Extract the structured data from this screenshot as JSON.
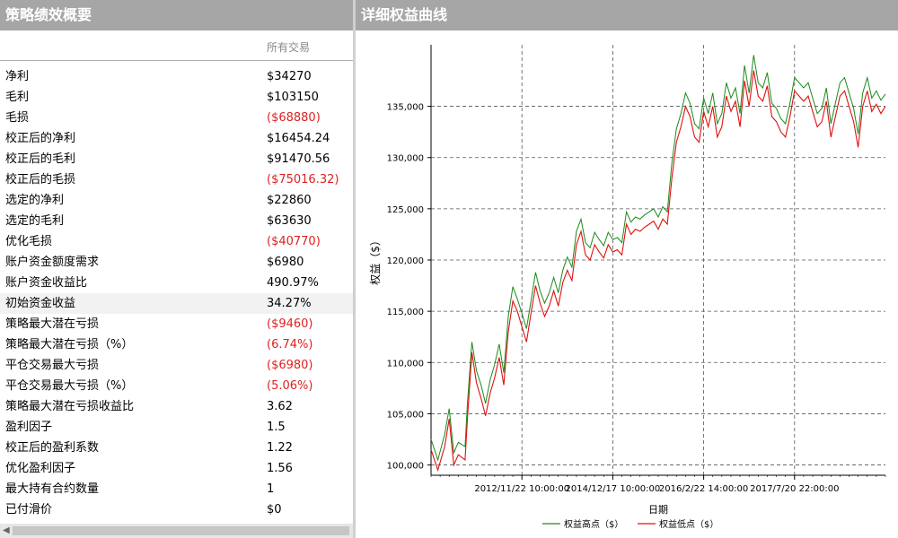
{
  "left_panel": {
    "title": "策略绩效概要",
    "column_header": "所有交易",
    "rows": [
      {
        "label": "净利",
        "value": "$34270",
        "negative": false
      },
      {
        "label": "毛利",
        "value": "$103150",
        "negative": false
      },
      {
        "label": "毛损",
        "value": "($68880)",
        "negative": true
      },
      {
        "label": "校正后的净利",
        "value": "$16454.24",
        "negative": false
      },
      {
        "label": "校正后的毛利",
        "value": "$91470.56",
        "negative": false
      },
      {
        "label": "校正后的毛损",
        "value": "($75016.32)",
        "negative": true
      },
      {
        "label": "选定的净利",
        "value": "$22860",
        "negative": false
      },
      {
        "label": "选定的毛利",
        "value": "$63630",
        "negative": false
      },
      {
        "label": "优化毛损",
        "value": "($40770)",
        "negative": true
      },
      {
        "label": "账户资金额度需求",
        "value": "$6980",
        "negative": false
      },
      {
        "label": "账户资金收益比",
        "value": "490.97%",
        "negative": false
      },
      {
        "label": "初始资金收益",
        "value": "34.27%",
        "negative": false,
        "highlight": true
      },
      {
        "label": "策略最大潜在亏损",
        "value": "($9460)",
        "negative": true
      },
      {
        "label": "策略最大潜在亏损（%）",
        "value": "(6.74%)",
        "negative": true
      },
      {
        "label": "平仓交易最大亏损",
        "value": "($6980)",
        "negative": true
      },
      {
        "label": "平仓交易最大亏损（%）",
        "value": "(5.06%)",
        "negative": true
      },
      {
        "label": "策略最大潜在亏损收益比",
        "value": "3.62",
        "negative": false
      },
      {
        "label": "盈利因子",
        "value": "1.5",
        "negative": false
      },
      {
        "label": "校正后的盈利系数",
        "value": "1.22",
        "negative": false
      },
      {
        "label": "优化盈利因子",
        "value": "1.56",
        "negative": false
      },
      {
        "label": "最大持有合约数量",
        "value": "1",
        "negative": false
      },
      {
        "label": "已付滑价",
        "value": "$0",
        "negative": false
      }
    ]
  },
  "right_panel": {
    "title": "详细权益曲线"
  },
  "chart_data": {
    "type": "line",
    "title": "",
    "xlabel": "日期",
    "ylabel": "权益（$）",
    "ylim": [
      99000,
      141000
    ],
    "y_ticks": [
      100000,
      105000,
      110000,
      115000,
      120000,
      125000,
      130000,
      135000
    ],
    "y_tick_labels": [
      "100,000",
      "105,000",
      "110,000",
      "115,000",
      "120,000",
      "125,000",
      "130,000",
      "135,000"
    ],
    "x_tick_labels": [
      "2012/11/22 10:00:00",
      "2014/12/17 10:00:00",
      "2016/2/22 14:00:00",
      "2017/7/20 22:00:00"
    ],
    "x_tick_positions": [
      0.2,
      0.4,
      0.6,
      0.8
    ],
    "grid": true,
    "legend": "bottom-center",
    "series": [
      {
        "name": "权益高点（$）",
        "color": "#1a8a1a"
      },
      {
        "name": "权益低点（$）",
        "color": "#e01010"
      }
    ],
    "x": [
      0,
      0.015,
      0.03,
      0.04,
      0.05,
      0.06,
      0.075,
      0.08,
      0.09,
      0.1,
      0.11,
      0.12,
      0.13,
      0.14,
      0.15,
      0.16,
      0.17,
      0.18,
      0.19,
      0.2,
      0.21,
      0.22,
      0.23,
      0.24,
      0.25,
      0.26,
      0.27,
      0.28,
      0.29,
      0.3,
      0.31,
      0.32,
      0.33,
      0.34,
      0.35,
      0.36,
      0.37,
      0.38,
      0.39,
      0.4,
      0.41,
      0.42,
      0.43,
      0.44,
      0.45,
      0.46,
      0.47,
      0.48,
      0.49,
      0.5,
      0.51,
      0.52,
      0.53,
      0.54,
      0.55,
      0.56,
      0.57,
      0.58,
      0.59,
      0.6,
      0.61,
      0.62,
      0.63,
      0.64,
      0.65,
      0.66,
      0.67,
      0.68,
      0.69,
      0.7,
      0.71,
      0.72,
      0.73,
      0.74,
      0.75,
      0.76,
      0.77,
      0.78,
      0.79,
      0.8,
      0.81,
      0.82,
      0.83,
      0.84,
      0.85,
      0.86,
      0.87,
      0.88,
      0.89,
      0.9,
      0.91,
      0.92,
      0.93,
      0.94,
      0.95,
      0.96,
      0.97,
      0.98,
      0.99,
      1.0
    ],
    "low": [
      101500,
      99500,
      101800,
      104500,
      100000,
      101000,
      100500,
      104500,
      111000,
      108000,
      106500,
      104800,
      107000,
      108500,
      110500,
      107800,
      113000,
      116000,
      115000,
      113500,
      112000,
      114800,
      117500,
      115800,
      114500,
      115500,
      117000,
      115500,
      117800,
      119000,
      118000,
      121500,
      122800,
      120500,
      120000,
      121500,
      120800,
      120200,
      121500,
      120800,
      121000,
      120500,
      123500,
      122500,
      123000,
      122800,
      123200,
      123500,
      123800,
      123000,
      124000,
      123500,
      128000,
      131500,
      133000,
      135000,
      134000,
      132000,
      131500,
      134500,
      133000,
      135000,
      132000,
      133000,
      136000,
      134500,
      135500,
      133000,
      137500,
      135000,
      138500,
      136000,
      135500,
      137000,
      134000,
      133500,
      132500,
      132000,
      134000,
      136500,
      136000,
      135500,
      136000,
      134500,
      133000,
      133500,
      135500,
      132000,
      134000,
      136000,
      136500,
      135000,
      133500,
      131000,
      135000,
      136500,
      134500,
      135200,
      134300,
      135000
    ],
    "high": [
      102500,
      100500,
      103000,
      105500,
      101200,
      102200,
      101800,
      106000,
      112000,
      109200,
      107800,
      106000,
      108300,
      109800,
      111800,
      109000,
      114500,
      117400,
      116200,
      114800,
      113300,
      116000,
      118800,
      117000,
      115800,
      116800,
      118300,
      116800,
      119000,
      120300,
      119300,
      122800,
      124000,
      121700,
      121200,
      122700,
      122000,
      121400,
      122700,
      122000,
      122200,
      121700,
      124700,
      123700,
      124200,
      124000,
      124400,
      124700,
      125000,
      124200,
      125200,
      124700,
      129500,
      132800,
      134300,
      136300,
      135300,
      133300,
      132800,
      135800,
      134300,
      136300,
      133300,
      134300,
      137300,
      135800,
      136800,
      134300,
      139000,
      136300,
      140000,
      137300,
      136800,
      138300,
      135300,
      134800,
      133800,
      133300,
      135300,
      137800,
      137300,
      136800,
      137300,
      135800,
      134300,
      134800,
      136800,
      133300,
      135300,
      137300,
      137800,
      136300,
      134800,
      132300,
      136300,
      137800,
      135800,
      136500,
      135600,
      136200
    ]
  }
}
